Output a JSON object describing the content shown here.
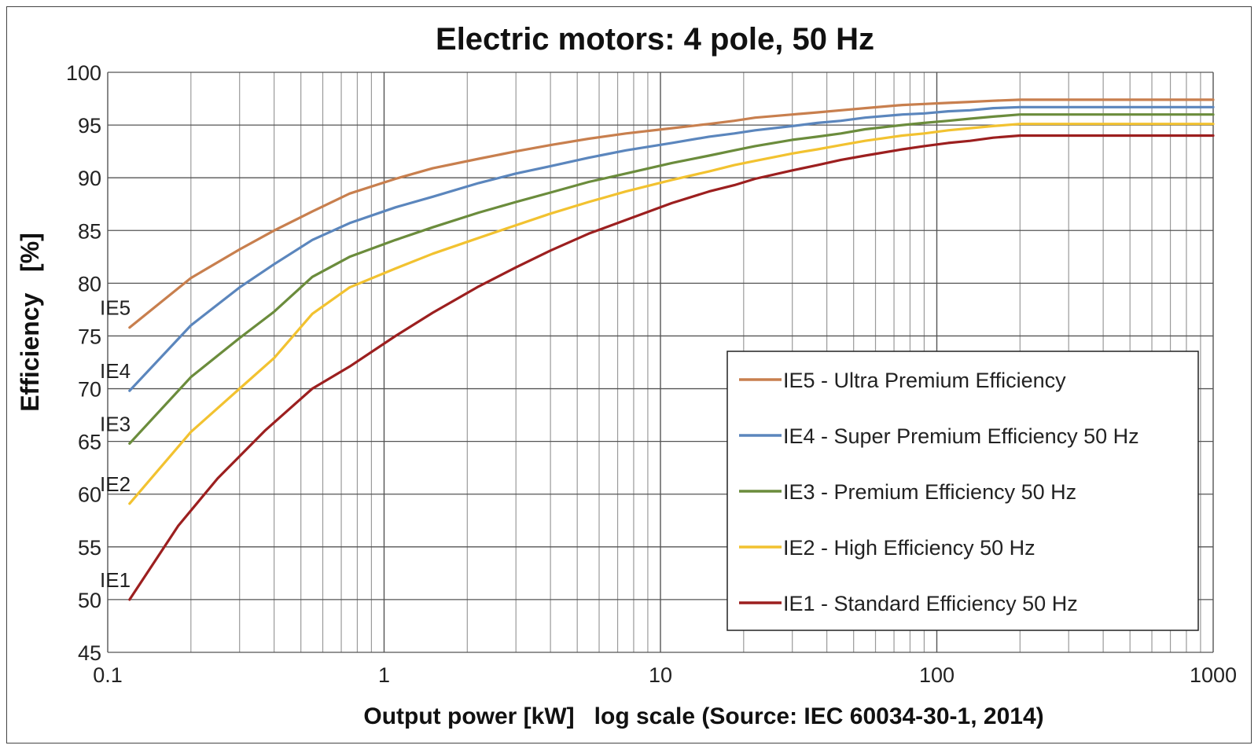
{
  "chart_data": {
    "type": "line",
    "title": "Electric motors: 4 pole, 50 Hz",
    "xlabel": "Output power [kW]   log scale (Source: IEC 60034-30-1, 2014)",
    "ylabel": "Efficiency   [%]",
    "xscale": "log",
    "xlim": [
      0.1,
      1000
    ],
    "ylim": [
      45,
      100
    ],
    "xticks": [
      0.1,
      1,
      10,
      100,
      1000
    ],
    "xtick_labels": [
      "0.1",
      "1",
      "10",
      "100",
      "1000"
    ],
    "yticks": [
      45,
      50,
      55,
      60,
      65,
      70,
      75,
      80,
      85,
      90,
      95,
      100
    ],
    "ytick_labels": [
      "45",
      "50",
      "55",
      "60",
      "65",
      "70",
      "75",
      "80",
      "85",
      "90",
      "95",
      "100"
    ],
    "grid": true,
    "legend_position": "bottom-right",
    "series": [
      {
        "name": "IE5 - Ultra Premium Efficiency",
        "end_label": "IE5",
        "color": "#c87f4e",
        "x": [
          0.12,
          0.2,
          0.3,
          0.4,
          0.55,
          0.75,
          1.1,
          1.5,
          2.2,
          3.0,
          4.0,
          5.5,
          7.5,
          11,
          15,
          18.5,
          22,
          30,
          37,
          45,
          55,
          75,
          90,
          110,
          132,
          160,
          200,
          1000
        ],
        "y": [
          75.8,
          80.5,
          83.2,
          85.0,
          86.8,
          88.5,
          89.9,
          90.9,
          91.8,
          92.5,
          93.1,
          93.7,
          94.2,
          94.7,
          95.1,
          95.4,
          95.7,
          96.0,
          96.2,
          96.4,
          96.6,
          96.9,
          97.0,
          97.1,
          97.2,
          97.3,
          97.4,
          97.4
        ]
      },
      {
        "name": "IE4 - Super Premium Efficiency 50 Hz",
        "end_label": "IE4",
        "color": "#5b86bd",
        "x": [
          0.12,
          0.2,
          0.3,
          0.4,
          0.55,
          0.75,
          1.1,
          1.5,
          2.2,
          3.0,
          4.0,
          5.5,
          7.5,
          11,
          15,
          18.5,
          22,
          30,
          37,
          45,
          55,
          75,
          90,
          110,
          132,
          160,
          200,
          1000
        ],
        "y": [
          69.8,
          76.0,
          79.6,
          81.8,
          84.1,
          85.7,
          87.2,
          88.2,
          89.5,
          90.4,
          91.1,
          91.9,
          92.6,
          93.3,
          93.9,
          94.2,
          94.5,
          94.9,
          95.2,
          95.4,
          95.7,
          96.0,
          96.1,
          96.3,
          96.4,
          96.6,
          96.7,
          96.7
        ]
      },
      {
        "name": "IE3 - Premium Efficiency 50 Hz",
        "end_label": "IE3",
        "color": "#6b8c3c",
        "x": [
          0.12,
          0.2,
          0.3,
          0.4,
          0.55,
          0.75,
          1.1,
          1.5,
          2.2,
          3.0,
          4.0,
          5.5,
          7.5,
          11,
          15,
          18.5,
          22,
          30,
          37,
          45,
          55,
          75,
          90,
          110,
          132,
          160,
          200,
          1000
        ],
        "y": [
          64.8,
          71.1,
          74.8,
          77.3,
          80.6,
          82.5,
          84.1,
          85.3,
          86.7,
          87.7,
          88.6,
          89.6,
          90.4,
          91.4,
          92.1,
          92.6,
          93.0,
          93.6,
          93.9,
          94.2,
          94.6,
          95.0,
          95.2,
          95.4,
          95.6,
          95.8,
          96.0,
          96.0
        ]
      },
      {
        "name": "IE2 - High Efficiency 50 Hz",
        "end_label": "IE2",
        "color": "#f2c230",
        "x": [
          0.12,
          0.2,
          0.3,
          0.4,
          0.55,
          0.75,
          1.1,
          1.5,
          2.2,
          3.0,
          4.0,
          5.5,
          7.5,
          11,
          15,
          18.5,
          22,
          30,
          37,
          45,
          55,
          75,
          90,
          110,
          132,
          160,
          200,
          1000
        ],
        "y": [
          59.1,
          65.9,
          70.0,
          72.9,
          77.1,
          79.6,
          81.4,
          82.8,
          84.3,
          85.5,
          86.6,
          87.7,
          88.7,
          89.8,
          90.6,
          91.2,
          91.6,
          92.3,
          92.7,
          93.1,
          93.5,
          94.0,
          94.2,
          94.5,
          94.7,
          94.9,
          95.1,
          95.1
        ]
      },
      {
        "name": "IE1 - Standard Efficiency 50 Hz",
        "end_label": "IE1",
        "color": "#9c1f1f",
        "x": [
          0.12,
          0.18,
          0.25,
          0.37,
          0.55,
          0.75,
          1.1,
          1.5,
          2.2,
          3.0,
          4.0,
          5.5,
          7.5,
          11,
          15,
          18.5,
          22,
          30,
          37,
          45,
          55,
          75,
          90,
          110,
          132,
          160,
          200,
          1000
        ],
        "y": [
          50.0,
          57.0,
          61.5,
          66.0,
          70.0,
          72.1,
          75.0,
          77.2,
          79.7,
          81.5,
          83.1,
          84.7,
          86.0,
          87.6,
          88.7,
          89.3,
          89.9,
          90.7,
          91.2,
          91.7,
          92.1,
          92.7,
          93.0,
          93.3,
          93.5,
          93.8,
          94.0,
          94.0
        ]
      }
    ]
  }
}
